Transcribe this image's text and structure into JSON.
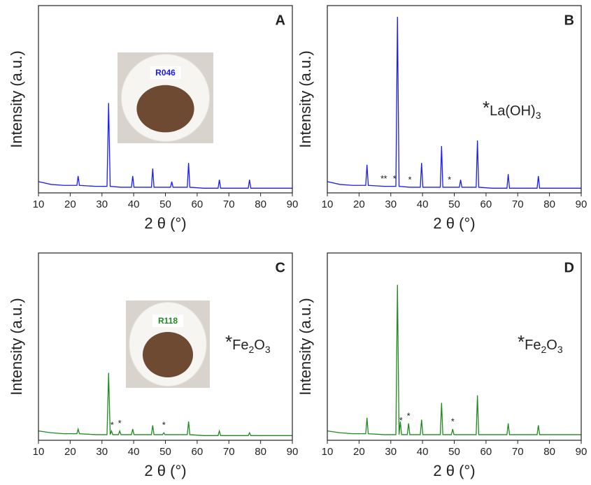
{
  "chart_data": [
    {
      "type": "line",
      "panel_label": "A",
      "color": "#1a1aff",
      "xlabel": "2 θ (°)",
      "ylabel": "Intensity (a.u.)",
      "xlim": [
        10,
        90
      ],
      "xticks": [
        10,
        20,
        30,
        40,
        50,
        60,
        70,
        80,
        90
      ],
      "ylim": [
        0,
        100
      ],
      "x": [
        10,
        14,
        18,
        22.1,
        22.5,
        22.9,
        28,
        31.6,
        32.1,
        32.6,
        36,
        39.3,
        39.7,
        40.1,
        43,
        45.6,
        46,
        46.4,
        49,
        51.6,
        52,
        52.4,
        55,
        56.9,
        57.3,
        57.7,
        62,
        66.6,
        67,
        67.4,
        72,
        76.1,
        76.5,
        76.9,
        82,
        86,
        90
      ],
      "values": [
        6,
        4.5,
        4,
        4,
        9,
        4,
        3.5,
        3.5,
        48,
        3.5,
        3,
        3,
        9,
        3,
        3,
        3,
        13,
        3,
        3,
        3,
        6,
        3,
        3,
        3,
        16,
        3,
        2.5,
        2.5,
        7,
        2.5,
        2.5,
        2.5,
        7,
        2.5,
        2.5,
        2.5,
        2.5
      ],
      "inset_label": "R046"
    },
    {
      "type": "line",
      "panel_label": "B",
      "color": "#1a1aff",
      "xlabel": "2 θ (°)",
      "ylabel": "Intensity (a.u.)",
      "xlim": [
        10,
        90
      ],
      "xticks": [
        10,
        20,
        30,
        40,
        50,
        60,
        70,
        80,
        90
      ],
      "ylim": [
        0,
        100
      ],
      "x": [
        10,
        14,
        18,
        22.1,
        22.5,
        22.9,
        28,
        31.6,
        32.1,
        32.6,
        36,
        39.3,
        39.7,
        40.1,
        43,
        45.6,
        46,
        46.4,
        49,
        51.6,
        52,
        52.4,
        55,
        56.9,
        57.3,
        57.7,
        62,
        66.6,
        67,
        67.4,
        72,
        76.1,
        76.5,
        76.9,
        82,
        86,
        90
      ],
      "values": [
        6,
        4.5,
        4,
        4,
        15,
        4,
        3.5,
        3.5,
        94,
        3.5,
        3,
        3,
        16,
        3,
        3,
        3,
        25,
        3,
        3,
        3,
        7,
        3,
        3,
        3,
        28,
        3,
        2.5,
        2.5,
        10,
        2.5,
        2.5,
        2.5,
        9,
        2.5,
        2.5,
        2.5,
        2.5
      ],
      "star_marks": {
        "label": "*",
        "x": [
          27.3,
          28.3,
          31.2,
          36,
          48.5
        ]
      },
      "formula": [
        {
          "text": "*"
        },
        {
          "text": "La(OH)"
        },
        {
          "text": "3",
          "sub": true
        }
      ]
    },
    {
      "type": "line",
      "panel_label": "C",
      "color": "#1f8a1f",
      "xlabel": "2 θ (°)",
      "ylabel": "Intensity (a.u.)",
      "xlim": [
        10,
        90
      ],
      "xticks": [
        10,
        20,
        30,
        40,
        50,
        60,
        70,
        80,
        90
      ],
      "ylim": [
        0,
        100
      ],
      "x": [
        10,
        14,
        18,
        22.1,
        22.5,
        22.9,
        28,
        31.6,
        32.1,
        32.6,
        33,
        33.4,
        35.2,
        35.6,
        36,
        39.3,
        39.7,
        40.1,
        43,
        45.6,
        46,
        46.4,
        49.1,
        49.5,
        49.9,
        56.9,
        57.3,
        57.7,
        62,
        66.6,
        67,
        67.4,
        72,
        76.1,
        76.5,
        76.9,
        82,
        86,
        90
      ],
      "values": [
        5,
        4,
        3.5,
        3.5,
        6,
        3.5,
        3,
        3,
        36,
        3,
        5,
        3,
        3,
        5,
        3,
        3,
        6,
        3,
        3,
        3,
        8,
        3,
        3,
        4,
        3,
        3,
        10,
        3,
        2.5,
        2.5,
        5,
        2.5,
        2.5,
        2.5,
        4,
        2.5,
        2.5,
        2.5,
        2.5
      ],
      "star_marks": {
        "label": "*",
        "x": [
          33.2,
          35.6,
          49.5
        ]
      },
      "formula": [
        {
          "text": "*"
        },
        {
          "text": "Fe"
        },
        {
          "text": "2",
          "sub": true
        },
        {
          "text": "O"
        },
        {
          "text": "3",
          "sub": true
        }
      ],
      "inset_label": "R118"
    },
    {
      "type": "line",
      "panel_label": "D",
      "color": "#1f8a1f",
      "xlabel": "2 θ (°)",
      "ylabel": "Intensity (a.u.)",
      "xlim": [
        10,
        90
      ],
      "xticks": [
        10,
        20,
        30,
        40,
        50,
        60,
        70,
        80,
        90
      ],
      "ylim": [
        0,
        100
      ],
      "x": [
        10,
        14,
        18,
        22.1,
        22.5,
        22.9,
        28,
        31.6,
        32.1,
        32.6,
        33,
        33.4,
        35.2,
        35.6,
        36,
        39.3,
        39.7,
        40.1,
        43,
        45.6,
        46,
        46.4,
        49.1,
        49.5,
        49.9,
        56.9,
        57.3,
        57.7,
        62,
        66.6,
        67,
        67.4,
        72,
        76.1,
        76.5,
        76.9,
        82,
        86,
        90
      ],
      "values": [
        5,
        4,
        3.5,
        3.5,
        12,
        3.5,
        3,
        3,
        83,
        3,
        10,
        3,
        3,
        9,
        3,
        3,
        11,
        3,
        3,
        3,
        20,
        3,
        3,
        6,
        3,
        3,
        24,
        3,
        3,
        3,
        9,
        3,
        3,
        3,
        8,
        3,
        3,
        3,
        3
      ],
      "star_marks": {
        "label": "*",
        "x": [
          33.2,
          35.6,
          49.5
        ]
      },
      "formula": [
        {
          "text": "*"
        },
        {
          "text": "Fe"
        },
        {
          "text": "2",
          "sub": true
        },
        {
          "text": "O"
        },
        {
          "text": "3",
          "sub": true
        }
      ]
    }
  ]
}
